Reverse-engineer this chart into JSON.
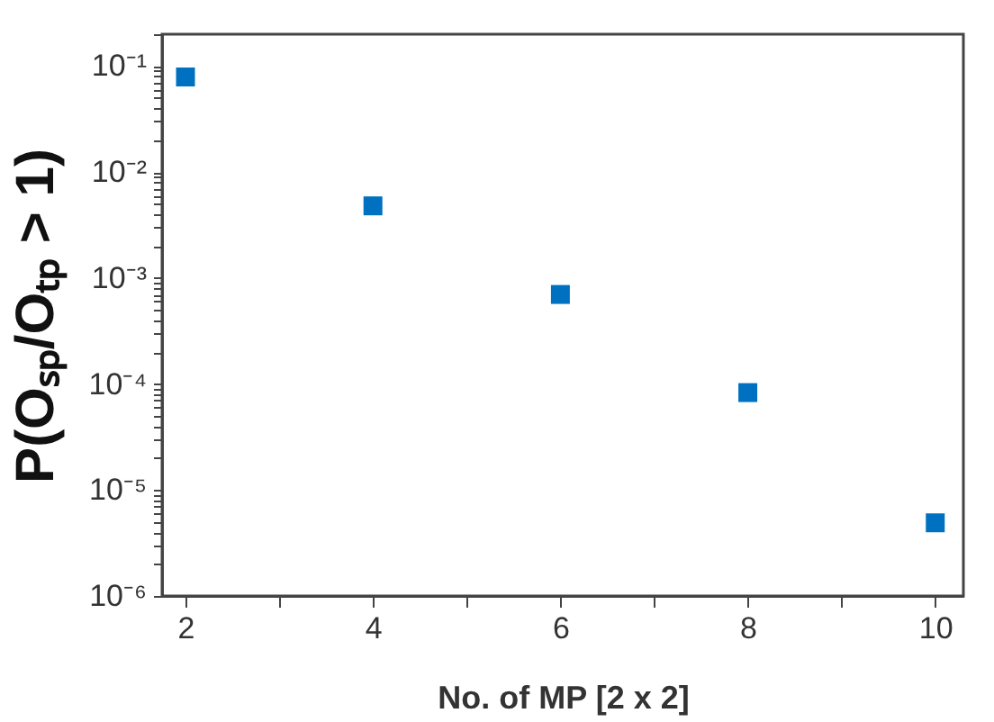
{
  "chart_data": {
    "type": "scatter",
    "xlabel": "No. of MP [2 x 2]",
    "ylabel": "P(Oₛₚ/Oₜₚ > 1)",
    "x": [
      2,
      4,
      6,
      8,
      10
    ],
    "series": [
      {
        "color": "#0070c0",
        "values": [
          0.079,
          0.0048,
          0.0007,
          8.3e-05,
          4.9e-06
        ]
      }
    ],
    "marker": "square",
    "log": "y",
    "grid": false,
    "legend": false,
    "xlim": [
      1.75,
      10.3
    ],
    "xticks": [
      2,
      {
        "value": 3,
        "label": null
      },
      4,
      {
        "value": 5,
        "label": null
      },
      6,
      {
        "value": 7,
        "label": null
      },
      8,
      {
        "value": 9,
        "label": null
      },
      10
    ],
    "ylim": [
      1e-06,
      0.2
    ],
    "yticks": [
      {
        "value": 1e-06,
        "label": "10⁻⁶"
      },
      {
        "value": 2e-06,
        "label": null
      },
      {
        "value": 3e-06,
        "label": null
      },
      {
        "value": 4e-06,
        "label": null
      },
      {
        "value": 5e-06,
        "label": null
      },
      {
        "value": 6e-06,
        "label": null
      },
      {
        "value": 7e-06,
        "label": null
      },
      {
        "value": 8e-06,
        "label": null
      },
      {
        "value": 9e-06,
        "label": null
      },
      {
        "value": 1e-05,
        "label": "10⁻⁵"
      },
      {
        "value": 2e-05,
        "label": null
      },
      {
        "value": 3e-05,
        "label": null
      },
      {
        "value": 4e-05,
        "label": null
      },
      {
        "value": 5e-05,
        "label": null
      },
      {
        "value": 6e-05,
        "label": null
      },
      {
        "value": 7e-05,
        "label": null
      },
      {
        "value": 8e-05,
        "label": null
      },
      {
        "value": 9e-05,
        "label": null
      },
      {
        "value": 0.0001,
        "label": "10⁻⁴"
      },
      {
        "value": 0.0002,
        "label": null
      },
      {
        "value": 0.0003,
        "label": null
      },
      {
        "value": 0.0004,
        "label": null
      },
      {
        "value": 0.0005,
        "label": null
      },
      {
        "value": 0.0006,
        "label": null
      },
      {
        "value": 0.0007,
        "label": null
      },
      {
        "value": 0.0008,
        "label": null
      },
      {
        "value": 0.0009,
        "label": null
      },
      {
        "value": 0.001,
        "label": "10⁻³"
      },
      {
        "value": 0.002,
        "label": null
      },
      {
        "value": 0.003,
        "label": null
      },
      {
        "value": 0.004,
        "label": null
      },
      {
        "value": 0.005,
        "label": null
      },
      {
        "value": 0.006,
        "label": null
      },
      {
        "value": 0.007,
        "label": null
      },
      {
        "value": 0.008,
        "label": null
      },
      {
        "value": 0.009,
        "label": null
      },
      {
        "value": 0.01,
        "label": "10⁻²"
      },
      {
        "value": 0.02,
        "label": null
      },
      {
        "value": 0.03,
        "label": null
      },
      {
        "value": 0.04,
        "label": null
      },
      {
        "value": 0.05,
        "label": null
      },
      {
        "value": 0.06,
        "label": null
      },
      {
        "value": 0.07,
        "label": null
      },
      {
        "value": 0.08,
        "label": null
      },
      {
        "value": 0.09,
        "label": null
      },
      {
        "value": 0.1,
        "label": "10⁻¹"
      },
      {
        "value": 0.2,
        "label": null
      }
    ]
  }
}
